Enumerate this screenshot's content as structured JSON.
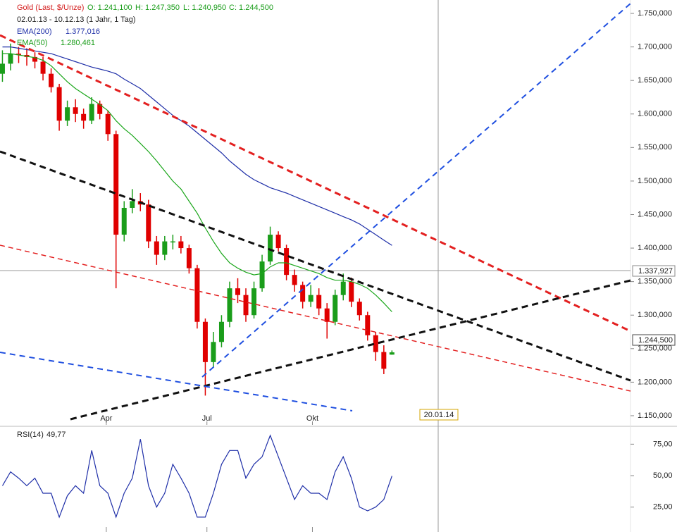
{
  "chart_data": [
    {
      "type": "candlestick",
      "title": "Gold (Last, $/Unze)",
      "ohlc_text": [
        "O: 1.241,100",
        "H: 1.247,350",
        "L: 1.240,950",
        "C: 1.244,500"
      ],
      "subtitle": "02.01.13 - 10.12.13 (1 Jahr, 1 Tag)",
      "xlim": [
        -0.3,
        77.4
      ],
      "xticks": [
        {
          "value": 12.8,
          "label": "Apr"
        },
        {
          "value": 25.2,
          "label": "Jul"
        },
        {
          "value": 38.2,
          "label": "Okt"
        }
      ],
      "ylim": [
        1136.3,
        1770
      ],
      "yticks": [
        {
          "value": 1150,
          "label": "1.150,000"
        },
        {
          "value": 1200,
          "label": "1.200,000"
        },
        {
          "value": 1250,
          "label": "1.250,000"
        },
        {
          "value": 1300,
          "label": "1.300,000"
        },
        {
          "value": 1350,
          "label": "1.350,000"
        },
        {
          "value": 1400,
          "label": "1.400,000"
        },
        {
          "value": 1450,
          "label": "1.450,000"
        },
        {
          "value": 1500,
          "label": "1.500,000"
        },
        {
          "value": 1550,
          "label": "1.550,000"
        },
        {
          "value": 1600,
          "label": "1.600,000"
        },
        {
          "value": 1650,
          "label": "1.650,000"
        },
        {
          "value": 1700,
          "label": "1.700,000"
        },
        {
          "value": 1750,
          "label": "1.750,000"
        }
      ],
      "up_color": "#1a9d1a",
      "down_color": "#e00000",
      "open": [
        1660,
        1675,
        1690,
        1688,
        1685,
        1678,
        1660,
        1640,
        1590,
        1610,
        1600,
        1590,
        1615,
        1600,
        1570,
        1420,
        1460,
        1470,
        1465,
        1410,
        1390,
        1410,
        1410,
        1400,
        1370,
        1290,
        1230,
        1260,
        1290,
        1340,
        1330,
        1300,
        1340,
        1380,
        1420,
        1400,
        1360,
        1345,
        1320,
        1330,
        1310,
        1290,
        1330,
        1350,
        1320,
        1300,
        1270,
        1245,
        1241.1
      ],
      "high": [
        1695,
        1705,
        1700,
        1698,
        1692,
        1685,
        1668,
        1645,
        1620,
        1622,
        1608,
        1625,
        1620,
        1605,
        1575,
        1470,
        1488,
        1482,
        1472,
        1418,
        1418,
        1420,
        1418,
        1405,
        1375,
        1295,
        1275,
        1300,
        1350,
        1355,
        1340,
        1350,
        1390,
        1432,
        1425,
        1405,
        1368,
        1350,
        1345,
        1340,
        1318,
        1338,
        1362,
        1356,
        1325,
        1305,
        1275,
        1255,
        1247.35
      ],
      "low": [
        1648,
        1665,
        1676,
        1672,
        1668,
        1650,
        1632,
        1575,
        1582,
        1588,
        1578,
        1585,
        1592,
        1560,
        1340,
        1410,
        1452,
        1455,
        1400,
        1375,
        1382,
        1398,
        1392,
        1362,
        1280,
        1180,
        1222,
        1252,
        1282,
        1318,
        1290,
        1295,
        1335,
        1375,
        1395,
        1352,
        1335,
        1310,
        1312,
        1300,
        1265,
        1285,
        1322,
        1312,
        1292,
        1262,
        1232,
        1212,
        1240.95
      ],
      "close": [
        1675,
        1690,
        1688,
        1685,
        1678,
        1660,
        1640,
        1590,
        1610,
        1600,
        1590,
        1615,
        1600,
        1570,
        1420,
        1460,
        1470,
        1465,
        1410,
        1390,
        1410,
        1410,
        1400,
        1370,
        1290,
        1230,
        1260,
        1290,
        1340,
        1330,
        1300,
        1340,
        1380,
        1420,
        1400,
        1360,
        1345,
        1320,
        1330,
        1310,
        1290,
        1330,
        1350,
        1320,
        1300,
        1270,
        1245,
        1220,
        1244.5
      ],
      "series": [
        {
          "name": "EMA(200)",
          "legend_value": "1.377,016",
          "color": "#1f2fa8",
          "values": [
            1700,
            1700,
            1698,
            1696,
            1694,
            1692,
            1690,
            1686,
            1682,
            1678,
            1674,
            1670,
            1667,
            1664,
            1660,
            1652,
            1645,
            1638,
            1628,
            1618,
            1608,
            1598,
            1590,
            1582,
            1572,
            1562,
            1552,
            1542,
            1530,
            1520,
            1510,
            1502,
            1496,
            1490,
            1486,
            1482,
            1477,
            1472,
            1467,
            1462,
            1457,
            1452,
            1447,
            1442,
            1436,
            1428,
            1420,
            1412,
            1404
          ]
        },
        {
          "name": "EMA(50)",
          "legend_value": "1.280,461",
          "color": "#1aa61a",
          "values": [
            1690,
            1690,
            1688,
            1686,
            1684,
            1680,
            1672,
            1660,
            1648,
            1638,
            1630,
            1622,
            1614,
            1605,
            1590,
            1578,
            1568,
            1556,
            1544,
            1530,
            1515,
            1500,
            1488,
            1470,
            1452,
            1430,
            1410,
            1392,
            1378,
            1370,
            1364,
            1360,
            1362,
            1372,
            1378,
            1378,
            1374,
            1370,
            1366,
            1362,
            1356,
            1352,
            1352,
            1350,
            1346,
            1340,
            1330,
            1318,
            1305
          ]
        }
      ],
      "annotations": {
        "crosshair_price": "1.337,927",
        "last_price": "1.244,500",
        "crosshair_date": "20.01.14"
      }
    },
    {
      "type": "line",
      "series": [
        {
          "name": "RSI(14)",
          "legend_value": "49,77",
          "color": "#1f2fa8",
          "values": [
            42,
            53,
            48,
            42,
            48,
            36,
            36,
            17,
            34,
            42,
            36,
            70,
            42,
            36,
            17,
            36,
            48,
            79,
            42,
            25,
            36,
            59,
            48,
            36,
            17,
            17,
            36,
            59,
            70,
            70,
            48,
            59,
            65,
            82,
            65,
            48,
            31,
            42,
            36,
            36,
            31,
            53,
            65,
            48,
            25,
            22,
            25,
            31,
            49.77
          ]
        }
      ],
      "ylim": [
        8,
        86.4
      ],
      "yticks": [
        {
          "value": 25,
          "label": "25,00"
        },
        {
          "value": 50,
          "label": "50,00"
        },
        {
          "value": 75,
          "label": "75,00"
        }
      ]
    }
  ]
}
